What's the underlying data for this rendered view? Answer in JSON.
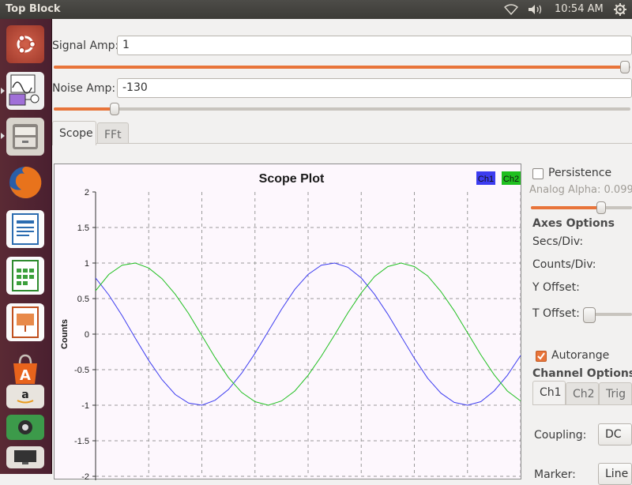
{
  "topbar": {
    "window_title": "Top Block",
    "clock": "10:54 AM",
    "icons": [
      "wifi-icon",
      "volume-icon",
      "gear-icon"
    ]
  },
  "launcher": {
    "items": [
      "ubuntu-dash-icon",
      "gnuradio-companion-icon",
      "files-icon",
      "firefox-icon",
      "libreoffice-writer-icon",
      "libreoffice-calc-icon",
      "libreoffice-impress-icon",
      "software-center-icon",
      "amazon-icon",
      "terminal-icon",
      "display-icon"
    ]
  },
  "controls": {
    "signal_amp_label": "Signal Amp:",
    "signal_amp_value": "1",
    "signal_amp_slider_fraction": 1.0,
    "noise_amp_label": "Noise Amp:",
    "noise_amp_value": "-130",
    "noise_amp_slider_fraction": 0.11
  },
  "tabs": [
    {
      "label": "Scope",
      "active": true
    },
    {
      "label": "FFt",
      "active": false
    }
  ],
  "plot": {
    "title": "Scope Plot",
    "ylabel": "Counts",
    "legend": [
      {
        "label": "Ch1",
        "color": "#3c3cf0"
      },
      {
        "label": "Ch2",
        "color": "#1fbf1f"
      }
    ],
    "yticks": [
      "2",
      "1.5",
      "1",
      "0.5",
      "0",
      "-0.5",
      "-1",
      "-1.5",
      "-2"
    ]
  },
  "chart_data": {
    "type": "line",
    "title": "Scope Plot",
    "xlabel": "",
    "ylabel": "Counts",
    "ylim": [
      -2,
      2
    ],
    "grid": true,
    "legend_position": "top-right",
    "series": [
      {
        "name": "Ch1",
        "color": "#3c3cf0",
        "x": [
          0,
          0.5,
          1,
          1.5,
          2,
          2.5,
          3,
          3.5,
          4,
          4.5,
          5,
          5.5,
          6,
          6.5,
          7,
          7.5,
          8,
          8.5,
          9,
          9.5,
          10,
          10.5,
          11,
          11.5,
          12,
          12.5,
          13,
          13.5,
          14,
          14.5,
          15,
          15.5,
          16
        ],
        "values": [
          0.79,
          0.55,
          0.26,
          -0.06,
          -0.37,
          -0.64,
          -0.85,
          -0.97,
          -1.0,
          -0.93,
          -0.78,
          -0.55,
          -0.27,
          0.04,
          0.35,
          0.63,
          0.84,
          0.97,
          1.0,
          0.94,
          0.79,
          0.56,
          0.28,
          -0.03,
          -0.34,
          -0.62,
          -0.83,
          -0.96,
          -1.0,
          -0.95,
          -0.8,
          -0.58,
          -0.3
        ]
      },
      {
        "name": "Ch2",
        "color": "#1fbf1f",
        "x": [
          0,
          0.5,
          1,
          1.5,
          2,
          2.5,
          3,
          3.5,
          4,
          4.5,
          5,
          5.5,
          6,
          6.5,
          7,
          7.5,
          8,
          8.5,
          9,
          9.5,
          10,
          10.5,
          11,
          11.5,
          12,
          12.5,
          13,
          13.5,
          14,
          14.5,
          15,
          15.5,
          16
        ],
        "values": [
          0.61,
          0.84,
          0.97,
          1.0,
          0.93,
          0.78,
          0.56,
          0.29,
          -0.02,
          -0.33,
          -0.61,
          -0.82,
          -0.95,
          -1.0,
          -0.94,
          -0.8,
          -0.58,
          -0.31,
          -0.01,
          0.3,
          0.58,
          0.81,
          0.95,
          1.0,
          0.95,
          0.82,
          0.6,
          0.33,
          0.02,
          -0.29,
          -0.57,
          -0.8,
          -0.94
        ]
      }
    ]
  },
  "panel": {
    "persistence_label": "Persistence",
    "persistence_checked": false,
    "analog_alpha_label": "Analog Alpha: 0.099",
    "analog_alpha_fraction": 0.7,
    "axes_options_header": "Axes Options",
    "secs_div_label": "Secs/Div:",
    "counts_div_label": "Counts/Div:",
    "y_offset_label": "Y Offset:",
    "t_offset_label": "T Offset:",
    "autorange_label": "Autorange",
    "autorange_checked": true,
    "channel_options_header": "Channel Options",
    "channel_tabs": [
      "Ch1",
      "Ch2",
      "Trig"
    ],
    "coupling_label": "Coupling:",
    "coupling_value": "DC",
    "marker_label": "Marker:",
    "marker_value": "Line Plot"
  }
}
